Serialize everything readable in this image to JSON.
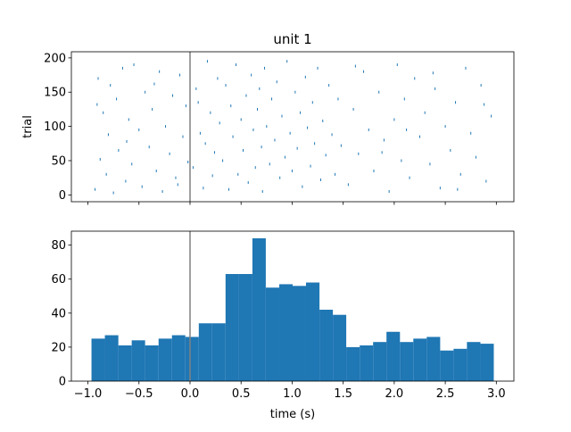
{
  "chart_data": [
    {
      "type": "raster",
      "title": "unit 1",
      "ylabel": "trial",
      "color": "#1f77b4",
      "vline": 0,
      "vline_color": "#808080",
      "xlim": [
        -1.162,
        3.172
      ],
      "ylim": [
        -9.95,
        208.95
      ],
      "xticks": [
        {
          "value": -1.0,
          "label": "−1.0"
        },
        {
          "value": -0.5,
          "label": "−0.5"
        },
        {
          "value": 0.0,
          "label": "0.0"
        },
        0.5,
        {
          "value": 1.0,
          "label": "1.0"
        },
        1.5,
        {
          "value": 2.0,
          "label": "2.0"
        },
        2.5,
        {
          "value": 3.0,
          "label": "3.0"
        }
      ],
      "yticks": [
        0,
        50,
        100,
        150,
        200
      ],
      "x": [
        -0.93,
        -0.9,
        -0.88,
        -0.85,
        -0.82,
        -0.8,
        -0.78,
        -0.75,
        -0.72,
        -0.7,
        -0.66,
        -0.63,
        -0.6,
        -0.57,
        -0.55,
        -0.5,
        -0.47,
        -0.44,
        -0.4,
        -0.37,
        -0.33,
        -0.3,
        -0.27,
        -0.24,
        -0.2,
        -0.17,
        -0.14,
        -0.1,
        -0.07,
        -0.04,
        -0.02,
        -0.91,
        -0.62,
        -0.35,
        -0.12,
        0.03,
        0.06,
        0.1,
        0.13,
        0.17,
        0.2,
        0.24,
        0.27,
        0.08,
        0.15,
        0.22,
        0.29,
        0.32,
        0.35,
        0.38,
        0.4,
        0.42,
        0.45,
        0.47,
        0.5,
        0.52,
        0.55,
        0.57,
        0.6,
        0.62,
        0.64,
        0.66,
        0.68,
        0.7,
        0.71,
        0.73,
        0.75,
        0.78,
        0.8,
        0.83,
        0.85,
        0.88,
        0.9,
        0.93,
        0.95,
        0.98,
        1.0,
        1.03,
        1.05,
        1.08,
        1.1,
        1.13,
        1.15,
        1.18,
        1.2,
        1.22,
        1.25,
        1.28,
        1.3,
        1.33,
        1.36,
        1.39,
        1.42,
        1.45,
        1.48,
        1.55,
        1.6,
        1.65,
        1.7,
        1.75,
        1.8,
        1.85,
        1.9,
        1.95,
        2.0,
        2.03,
        2.07,
        2.1,
        2.15,
        2.2,
        2.25,
        2.3,
        2.35,
        2.4,
        2.45,
        2.5,
        2.55,
        2.6,
        2.65,
        2.7,
        2.75,
        2.8,
        2.85,
        2.9,
        2.95,
        1.62,
        1.88,
        2.12,
        2.38,
        2.62,
        2.88
      ],
      "y": [
        8,
        170,
        52,
        120,
        30,
        88,
        160,
        3,
        140,
        65,
        185,
        20,
        110,
        45,
        190,
        95,
        12,
        150,
        70,
        125,
        35,
        180,
        5,
        100,
        60,
        145,
        25,
        175,
        85,
        130,
        48,
        132,
        78,
        162,
        15,
        40,
        155,
        90,
        10,
        195,
        120,
        62,
        170,
        135,
        75,
        28,
        105,
        50,
        160,
        8,
        130,
        85,
        190,
        30,
        110,
        65,
        145,
        18,
        175,
        95,
        40,
        125,
        155,
        70,
        5,
        185,
        100,
        45,
        140,
        80,
        165,
        25,
        115,
        55,
        195,
        90,
        35,
        150,
        68,
        120,
        12,
        172,
        98,
        42,
        135,
        75,
        185,
        22,
        108,
        58,
        160,
        88,
        30,
        140,
        72,
        15,
        125,
        60,
        180,
        95,
        35,
        150,
        80,
        5,
        110,
        190,
        50,
        140,
        25,
        170,
        85,
        120,
        45,
        155,
        10,
        100,
        65,
        135,
        30,
        185,
        90,
        55,
        160,
        20,
        115,
        188,
        62,
        95,
        178,
        8,
        132
      ]
    },
    {
      "type": "histogram",
      "xlabel": "time (s)",
      "color": "#1f77b4",
      "vline": 0,
      "vline_color": "#808080",
      "xlim": [
        -1.162,
        3.172
      ],
      "ylim": [
        0,
        88.2
      ],
      "xticks": [
        {
          "value": -1.0,
          "label": "−1.0"
        },
        {
          "value": -0.5,
          "label": "−0.5"
        },
        {
          "value": 0.0,
          "label": "0.0"
        },
        0.5,
        {
          "value": 1.0,
          "label": "1.0"
        },
        1.5,
        {
          "value": 2.0,
          "label": "2.0"
        },
        2.5,
        {
          "value": 3.0,
          "label": "3.0"
        }
      ],
      "yticks": [
        0,
        20,
        40,
        60,
        80
      ],
      "bins": [
        -0.965,
        -0.834,
        -0.702,
        -0.571,
        -0.44,
        -0.308,
        -0.177,
        -0.046,
        0.086,
        0.217,
        0.348,
        0.48,
        0.611,
        0.742,
        0.874,
        1.005,
        1.136,
        1.268,
        1.399,
        1.53,
        1.662,
        1.793,
        1.924,
        2.056,
        2.187,
        2.318,
        2.45,
        2.581,
        2.712,
        2.844,
        2.975
      ],
      "values": [
        25,
        27,
        21,
        24,
        21,
        25,
        27,
        26,
        34,
        34,
        63,
        63,
        84,
        55,
        57,
        56,
        58,
        42,
        39,
        20,
        21,
        23,
        29,
        23,
        25,
        26,
        18,
        19,
        23,
        22
      ]
    }
  ]
}
